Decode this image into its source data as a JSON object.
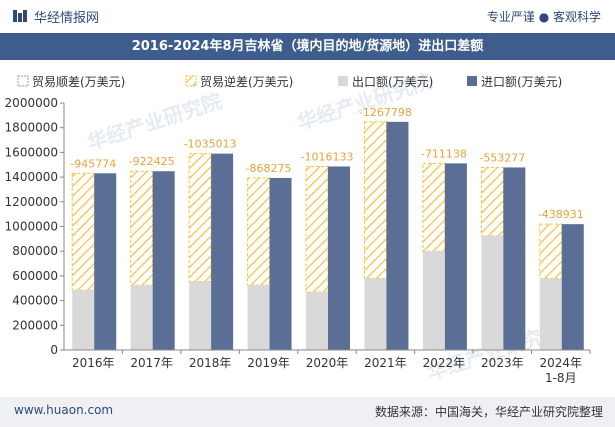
{
  "header": {
    "brand_name": "华经情报网",
    "slogan": "专业严谨 ● 客观科学"
  },
  "title": "2016-2024年8月吉林省（境内目的地/货源地）进出口差额",
  "footer": {
    "url": "www.huaon.com",
    "source": "数据来源：中国海关，华经产业研究院整理"
  },
  "watermark": {
    "text_cn": "华经产业研究院",
    "text_url": "www.huaon.com"
  },
  "colors": {
    "header_text": "#2f4a78",
    "title_bar": "#3f5d8c",
    "export": "#d9d9d9",
    "import": "#5b6f96",
    "deficit_stripe": "#f5c242",
    "label": "#e8a33c",
    "axis_text": "#333333"
  },
  "chart_data": {
    "type": "bar",
    "categories": [
      "2016年",
      "2017年",
      "2018年",
      "2019年",
      "2020年",
      "2021年",
      "2022年",
      "2023年",
      "2024年\n1-8月"
    ],
    "series": [
      {
        "name": "贸易顺差(万美元)",
        "values": [
          0,
          0,
          0,
          0,
          0,
          0,
          0,
          0,
          0
        ]
      },
      {
        "name": "贸易逆差(万美元)",
        "values": [
          -945774,
          -922425,
          -1035013,
          -868275,
          -1016133,
          -1267798,
          -711138,
          -553277,
          -438931
        ]
      },
      {
        "name": "出口额(万美元)",
        "values": [
          485000,
          525000,
          555000,
          525000,
          470000,
          580000,
          800000,
          925000,
          580000
        ]
      },
      {
        "name": "进口额(万美元)",
        "values": [
          1430774,
          1447425,
          1590013,
          1393275,
          1486133,
          1847798,
          1511138,
          1478277,
          1018931
        ]
      }
    ],
    "ylim": [
      0,
      2000000
    ],
    "yticks": [
      0,
      200000,
      400000,
      600000,
      800000,
      1000000,
      1200000,
      1400000,
      1600000,
      1800000,
      2000000
    ],
    "legend_position": "top",
    "grid": false
  }
}
